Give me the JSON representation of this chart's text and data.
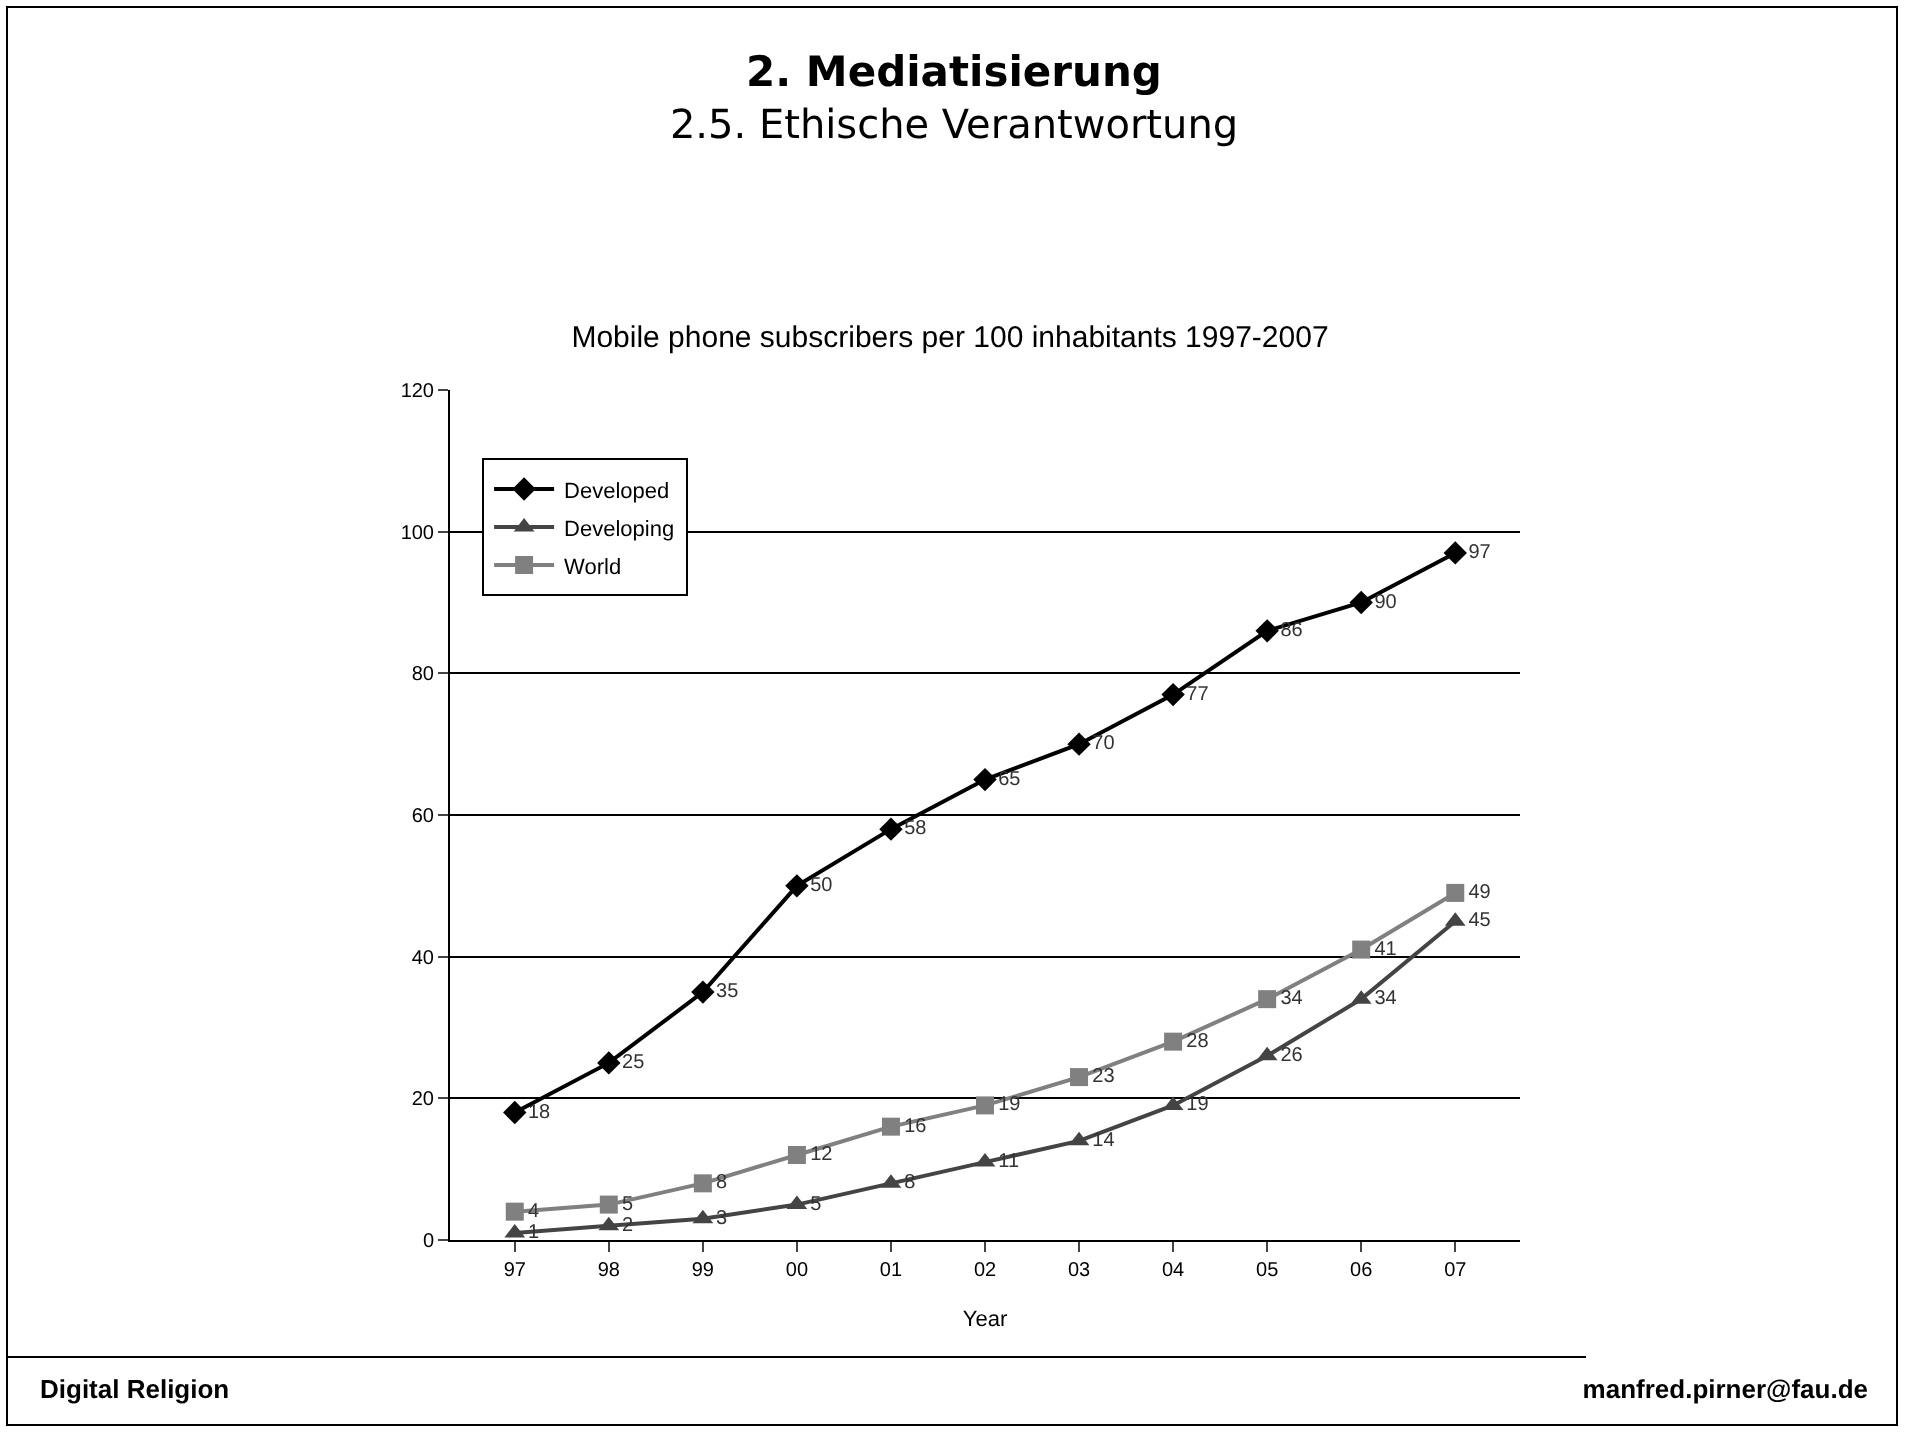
{
  "chart_data": {
    "type": "line",
    "title": "Mobile phone subscribers per 100 inhabitants 1997-2007",
    "xlabel": "Year",
    "annotations": [
      "2. Mediatisierung",
      "2.5. Ethische Verantwortung",
      "Digital Religion",
      "manfred.pirner@fau.de"
    ],
    "categories": [
      "97",
      "98",
      "99",
      "00",
      "01",
      "02",
      "03",
      "04",
      "05",
      "06",
      "07"
    ],
    "series": [
      {
        "name": "Developed",
        "color": "#000000",
        "marker": "diamond",
        "values": [
          18,
          25,
          35,
          50,
          58,
          65,
          70,
          77,
          86,
          90,
          97
        ]
      },
      {
        "name": "Developing",
        "color": "#444444",
        "marker": "triangle",
        "values": [
          1,
          2,
          3,
          5,
          8,
          11,
          14,
          19,
          26,
          34,
          45
        ]
      },
      {
        "name": "World",
        "color": "#808080",
        "marker": "square",
        "values": [
          4,
          5,
          8,
          12,
          16,
          19,
          23,
          28,
          34,
          41,
          49
        ]
      }
    ],
    "ylim": [
      0,
      120
    ],
    "yticks": [
      0,
      20,
      40,
      60,
      80,
      100,
      120
    ],
    "grid": "y",
    "legend": "top left",
    "data_labels": true,
    "line_style": "solid"
  }
}
